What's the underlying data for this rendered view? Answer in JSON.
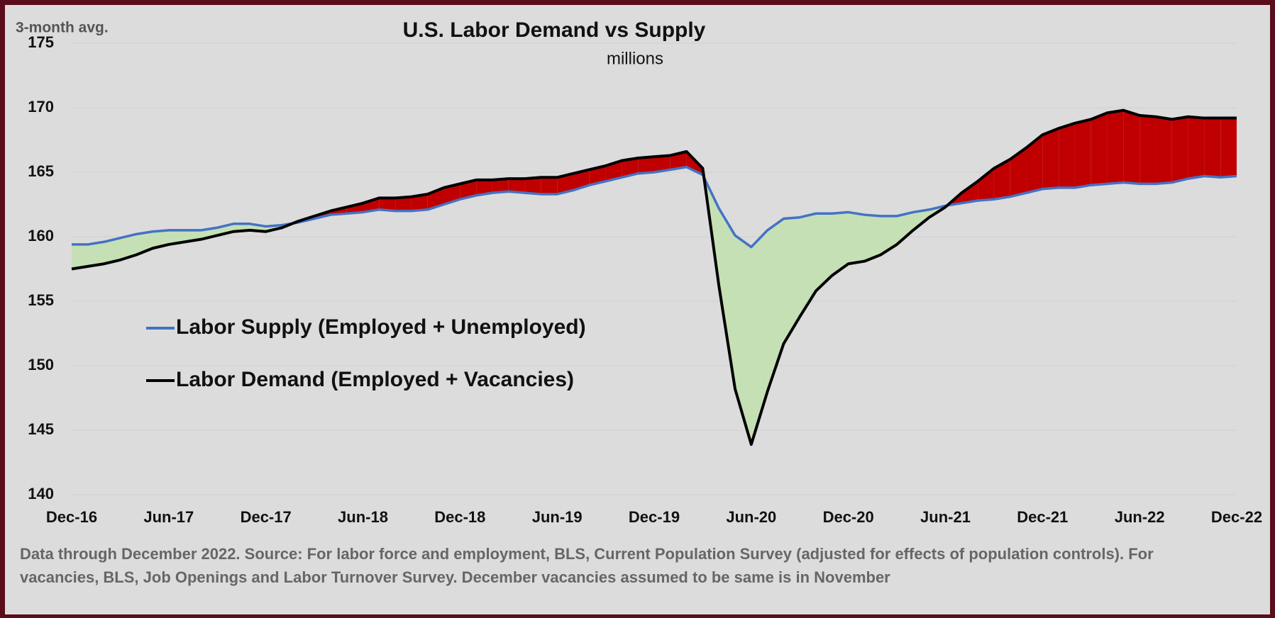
{
  "chart_data": {
    "type": "line",
    "title": "U.S. Labor Demand vs Supply",
    "subtitle": "millions",
    "y_label": "3-month avg.",
    "footnote": [
      "Data through December 2022. Source: For labor force and employment, BLS, Current Population Survey (adjusted for effects of population controls). For",
      "vacancies, BLS, Job Openings and Labor Turnover Survey. December vacancies assumed to be same is in November"
    ],
    "categories": [
      "Dec-16",
      null,
      null,
      null,
      null,
      null,
      "Jun-17",
      null,
      null,
      null,
      null,
      null,
      "Dec-17",
      null,
      null,
      null,
      null,
      null,
      "Jun-18",
      null,
      null,
      null,
      null,
      null,
      "Dec-18",
      null,
      null,
      null,
      null,
      null,
      "Jun-19",
      null,
      null,
      null,
      null,
      null,
      "Dec-19",
      null,
      null,
      null,
      null,
      null,
      "Jun-20",
      null,
      null,
      null,
      null,
      null,
      "Dec-20",
      null,
      null,
      null,
      null,
      null,
      "Jun-21",
      null,
      null,
      null,
      null,
      null,
      "Dec-21",
      null,
      null,
      null,
      null,
      null,
      "Jun-22",
      null,
      null,
      null,
      null,
      null,
      "Dec-22"
    ],
    "series": [
      {
        "name": "Labor Supply (Employed + Unemployed)",
        "color": "#4472c4",
        "values": [
          159.4,
          159.4,
          159.6,
          159.9,
          160.2,
          160.4,
          160.5,
          160.5,
          160.5,
          160.7,
          161.0,
          161.0,
          160.8,
          160.9,
          161.1,
          161.4,
          161.7,
          161.8,
          161.9,
          162.1,
          162.0,
          162.0,
          162.1,
          162.5,
          162.9,
          163.2,
          163.4,
          163.5,
          163.4,
          163.3,
          163.3,
          163.6,
          164.0,
          164.3,
          164.6,
          164.9,
          165.0,
          165.2,
          165.4,
          164.8,
          162.2,
          160.1,
          159.2,
          160.5,
          161.4,
          161.5,
          161.8,
          161.8,
          161.9,
          161.7,
          161.6,
          161.6,
          161.9,
          162.1,
          162.4,
          162.6,
          162.8,
          162.9,
          163.1,
          163.4,
          163.7,
          163.8,
          163.8,
          164.0,
          164.1,
          164.2,
          164.1,
          164.1,
          164.2,
          164.5,
          164.7,
          164.6,
          164.7
        ]
      },
      {
        "name": "Labor Demand (Employed + Vacancies)",
        "color": "#000000",
        "values": [
          157.5,
          157.7,
          157.9,
          158.2,
          158.6,
          159.1,
          159.4,
          159.6,
          159.8,
          160.1,
          160.4,
          160.5,
          160.4,
          160.7,
          161.2,
          161.6,
          162.0,
          162.3,
          162.6,
          163.0,
          163.0,
          163.1,
          163.3,
          163.8,
          164.1,
          164.4,
          164.4,
          164.5,
          164.5,
          164.6,
          164.6,
          164.9,
          165.2,
          165.5,
          165.9,
          166.1,
          166.2,
          166.3,
          166.6,
          165.3,
          156.2,
          148.2,
          143.9,
          148.0,
          151.7,
          153.8,
          155.8,
          157.0,
          157.9,
          158.1,
          158.6,
          159.4,
          160.5,
          161.5,
          162.3,
          163.4,
          164.3,
          165.3,
          166.0,
          166.9,
          167.9,
          168.4,
          168.8,
          169.1,
          169.6,
          169.8,
          169.4,
          169.3,
          169.1,
          169.3,
          169.2,
          169.2,
          169.2
        ]
      }
    ],
    "fill_demand_above": "#c00000",
    "fill_supply_above": "#c5e0b4",
    "ylim": [
      140,
      175
    ],
    "yticks": [
      140,
      145,
      150,
      155,
      160,
      165,
      170,
      175
    ],
    "grid": true
  }
}
